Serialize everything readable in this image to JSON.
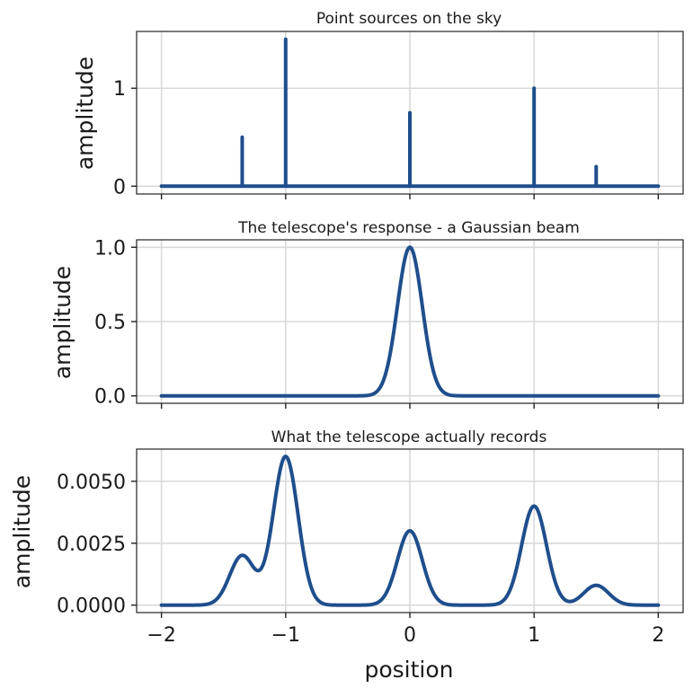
{
  "chart_data": [
    {
      "type": "line",
      "title": "Point sources on the sky",
      "xlabel": "",
      "ylabel": "amplitude",
      "xlim": [
        -2.2,
        2.2
      ],
      "ylim": [
        -0.08,
        1.58
      ],
      "xticks": [
        -2,
        -1,
        0,
        1,
        2
      ],
      "yticks": [
        0,
        1
      ],
      "ytick_labels": [
        "0",
        "1"
      ],
      "grid": true,
      "series": [
        {
          "style": "spikes",
          "color": "#1f4e8c",
          "x_range": [
            -2,
            2
          ],
          "baseline": 0,
          "points": [
            {
              "x": -1.35,
              "y": 0.5
            },
            {
              "x": -1.0,
              "y": 1.5
            },
            {
              "x": 0.0,
              "y": 0.75
            },
            {
              "x": 1.0,
              "y": 1.0
            },
            {
              "x": 1.5,
              "y": 0.2
            }
          ]
        }
      ]
    },
    {
      "type": "line",
      "title": "The telescope's response - a Gaussian beam",
      "xlabel": "",
      "ylabel": "amplitude",
      "xlim": [
        -2.2,
        2.2
      ],
      "ylim": [
        -0.05,
        1.05
      ],
      "xticks": [
        -2,
        -1,
        0,
        1,
        2
      ],
      "yticks": [
        0,
        0.5,
        1.0
      ],
      "ytick_labels": [
        "0.0",
        "0.5",
        "1.0"
      ],
      "grid": true,
      "series": [
        {
          "style": "gaussian_sum",
          "color": "#1f4e8c",
          "x_range": [
            -2,
            2
          ],
          "sigma": 0.1,
          "components": [
            {
              "center": 0.0,
              "amplitude": 1.0
            }
          ]
        }
      ]
    },
    {
      "type": "line",
      "title": "What the telescope actually records",
      "xlabel": "position",
      "ylabel": "amplitude",
      "xlim": [
        -2.2,
        2.2
      ],
      "ylim": [
        -0.0003,
        0.0063
      ],
      "xticks": [
        -2,
        -1,
        0,
        1,
        2
      ],
      "xtick_labels": [
        "−2",
        "−1",
        "0",
        "1",
        "2"
      ],
      "yticks": [
        0,
        0.0025,
        0.005
      ],
      "ytick_labels": [
        "0.0000",
        "0.0025",
        "0.0050"
      ],
      "grid": true,
      "series": [
        {
          "style": "gaussian_sum",
          "color": "#1f4e8c",
          "x_range": [
            -2,
            2
          ],
          "sigma": 0.1,
          "components": [
            {
              "center": -1.35,
              "amplitude": 0.002
            },
            {
              "center": -1.0,
              "amplitude": 0.006
            },
            {
              "center": 0.0,
              "amplitude": 0.003
            },
            {
              "center": 1.0,
              "amplitude": 0.004
            },
            {
              "center": 1.5,
              "amplitude": 0.0008
            }
          ]
        }
      ]
    }
  ]
}
